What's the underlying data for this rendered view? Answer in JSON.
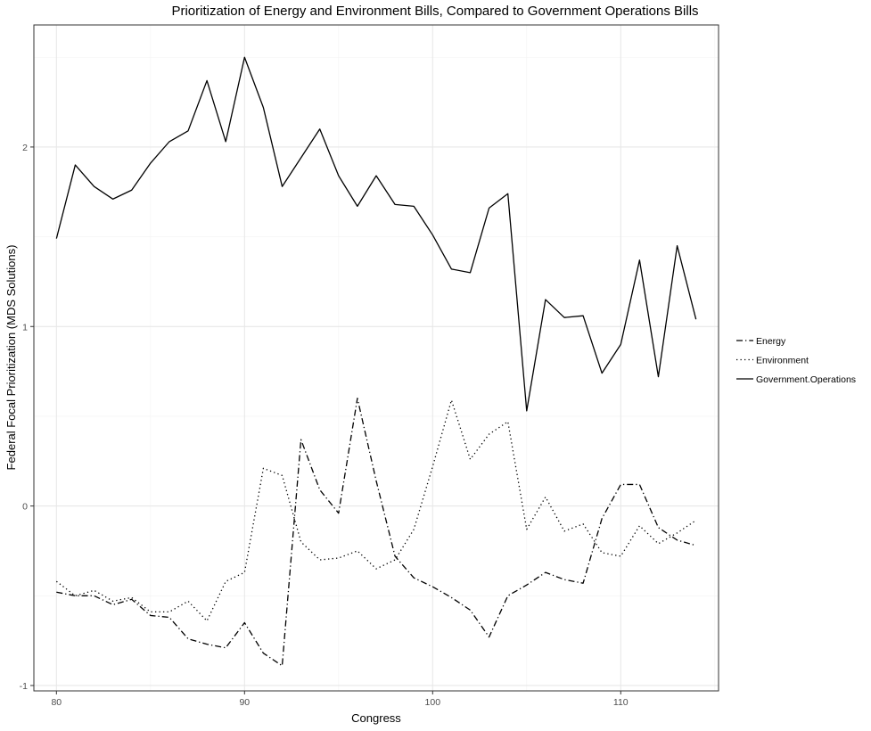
{
  "chart_data": {
    "type": "line",
    "title": "Prioritization of Energy and Environment Bills, Compared to Government Operations Bills",
    "xlabel": "Congress",
    "ylabel": "Federal Focal Prioritization (MDS Solutions)",
    "xlim": [
      78.8,
      115.2
    ],
    "ylim": [
      -1.03,
      2.68
    ],
    "x_ticks": [
      80,
      90,
      100,
      110
    ],
    "y_ticks": [
      -1,
      0,
      1,
      2
    ],
    "grid": true,
    "legend_position": "right",
    "x": [
      80,
      81,
      82,
      83,
      84,
      85,
      86,
      87,
      88,
      89,
      90,
      91,
      92,
      93,
      94,
      95,
      96,
      97,
      98,
      99,
      100,
      101,
      102,
      103,
      104,
      105,
      106,
      107,
      108,
      109,
      110,
      111,
      112,
      113,
      114
    ],
    "series": [
      {
        "name": "Energy",
        "line_style": "dashdot",
        "color": "#000000",
        "values": [
          -0.48,
          -0.5,
          -0.5,
          -0.55,
          -0.52,
          -0.61,
          -0.62,
          -0.74,
          -0.77,
          -0.79,
          -0.65,
          -0.82,
          -0.89,
          0.37,
          0.09,
          -0.04,
          0.6,
          0.14,
          -0.28,
          -0.4,
          -0.45,
          -0.51,
          -0.58,
          -0.73,
          -0.5,
          -0.44,
          -0.37,
          -0.41,
          -0.43,
          -0.07,
          0.12,
          0.12,
          -0.12,
          -0.19,
          -0.22
        ]
      },
      {
        "name": "Environment",
        "line_style": "dotted",
        "color": "#000000",
        "values": [
          -0.42,
          -0.5,
          -0.47,
          -0.53,
          -0.51,
          -0.59,
          -0.59,
          -0.53,
          -0.64,
          -0.42,
          -0.37,
          0.21,
          0.17,
          -0.2,
          -0.3,
          -0.29,
          -0.25,
          -0.35,
          -0.3,
          -0.13,
          0.22,
          0.59,
          0.26,
          0.4,
          0.47,
          -0.13,
          0.05,
          -0.14,
          -0.1,
          -0.26,
          -0.28,
          -0.11,
          -0.21,
          -0.15,
          -0.08
        ]
      },
      {
        "name": "Government.Operations",
        "line_style": "solid",
        "color": "#000000",
        "values": [
          1.49,
          1.9,
          1.78,
          1.71,
          1.76,
          1.91,
          2.03,
          2.09,
          2.37,
          2.03,
          2.5,
          2.22,
          1.78,
          1.94,
          2.1,
          1.84,
          1.67,
          1.84,
          1.68,
          1.67,
          1.51,
          1.32,
          1.3,
          1.66,
          1.74,
          0.53,
          1.15,
          1.05,
          1.06,
          0.74,
          0.9,
          1.37,
          0.72,
          1.45,
          1.04
        ]
      }
    ]
  }
}
